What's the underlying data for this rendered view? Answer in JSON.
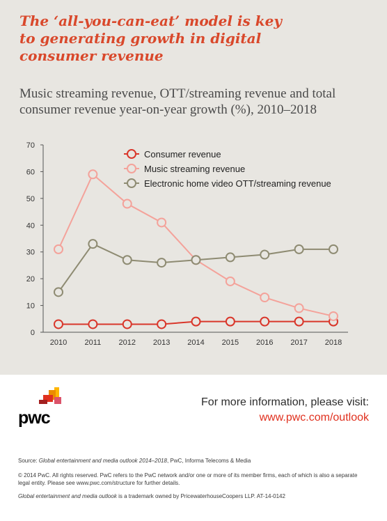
{
  "header": {
    "headline_line1": "The ‘all-you-can-eat’ model is key",
    "headline_line2": "to generating growth in digital",
    "headline_line3": "consumer revenue",
    "subtitle_line1": "Music streaming revenue, OTT/streaming revenue and total",
    "subtitle_line2": "consumer revenue year-on-year growth (%), 2010–2018"
  },
  "chart_data": {
    "type": "line",
    "title": "Music streaming revenue, OTT/streaming revenue and total consumer revenue year-on-year growth (%), 2010–2018",
    "x": [
      "2010",
      "2011",
      "2012",
      "2013",
      "2014",
      "2015",
      "2016",
      "2017",
      "2018"
    ],
    "ylim": [
      0,
      70
    ],
    "yticks": [
      0,
      10,
      20,
      30,
      40,
      50,
      60,
      70
    ],
    "grid": false,
    "legend_position": "top",
    "series": [
      {
        "name": "Consumer revenue",
        "color": "#d9362a",
        "values": [
          3,
          3,
          3,
          3,
          4,
          4,
          4,
          4,
          4
        ]
      },
      {
        "name": "Music streaming revenue",
        "color": "#f4a29a",
        "values": [
          31,
          59,
          48,
          41,
          27,
          19,
          13,
          9,
          6
        ]
      },
      {
        "name": "Electronic home video OTT/streaming revenue",
        "color": "#8e8b72",
        "values": [
          15,
          33,
          27,
          26,
          27,
          28,
          29,
          31,
          31
        ]
      }
    ]
  },
  "brand": {
    "logo_text": "pwc",
    "logo_colors": [
      "#ffb600",
      "#eb8c00",
      "#e0301e",
      "#db536a",
      "#a32020"
    ]
  },
  "info": {
    "label": "For more information, please visit:",
    "link": "www.pwc.com/outlook"
  },
  "footer": {
    "source_prefix": "Source: ",
    "source_title": "Global entertainment and media outlook 2014–2018",
    "source_rest": ", PwC, Informa Telecoms & Media",
    "copyright": "© 2014 PwC. All rights reserved. PwC refers to the PwC network and/or one or more of its member firms, each of which is also a separate legal entity. Please see www.pwc.com/structure for further details.",
    "trademark_title": "Global entertainment and media outlook",
    "trademark_rest": " is a trademark owned by PricewaterhouseCoopers LLP. AT-14-0142"
  }
}
